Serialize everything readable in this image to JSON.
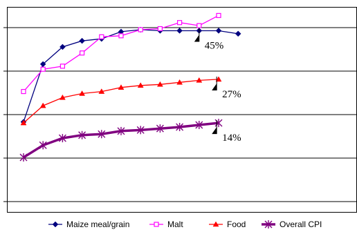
{
  "chart_data": {
    "type": "line",
    "title": "",
    "xlabel": "",
    "ylabel": "",
    "x_count": 16,
    "ylim": [
      0,
      140
    ],
    "grid": "horizontal",
    "legend_placement": "bottom",
    "series": [
      {
        "name": "Maize meal/grain",
        "color": "#00007f",
        "marker": "diamond",
        "values": [
          35,
          92,
          109,
          115,
          117,
          124,
          126,
          125,
          125,
          125,
          125,
          122
        ]
      },
      {
        "name": "Malt",
        "color": "#ff00ff",
        "marker": "square",
        "values": [
          65,
          87,
          90,
          103,
          119,
          120,
          126,
          127,
          133,
          130,
          140
        ]
      },
      {
        "name": "Food",
        "color": "#ff0000",
        "marker": "triangle",
        "values": [
          34,
          51,
          59,
          63,
          65,
          69,
          71,
          72,
          74,
          76,
          77
        ]
      },
      {
        "name": "Overall CPI",
        "color": "#800080",
        "marker": "star",
        "values": [
          0,
          12,
          19,
          22,
          23,
          26,
          27,
          28.5,
          30,
          32,
          34
        ]
      }
    ],
    "annotations": [
      {
        "text": "45%",
        "series": "Maize meal/grain"
      },
      {
        "text": "27%",
        "series": "Food"
      },
      {
        "text": "14%",
        "series": "Overall CPI"
      }
    ]
  }
}
